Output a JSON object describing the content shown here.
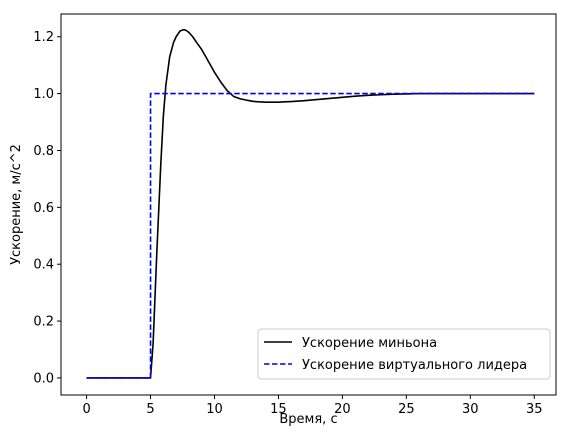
{
  "chart_data": {
    "type": "line",
    "xlabel": "Время, с",
    "ylabel": "Ускорение, м/с^2",
    "xlim": [
      -2.0,
      36.7
    ],
    "ylim": [
      -0.06,
      1.28
    ],
    "xticks": [
      0,
      5,
      10,
      15,
      20,
      25,
      30,
      35
    ],
    "xtick_labels": [
      "0",
      "5",
      "10",
      "15",
      "20",
      "25",
      "30",
      "35"
    ],
    "yticks": [
      0.0,
      0.2,
      0.4,
      0.6,
      0.8,
      1.0,
      1.2
    ],
    "ytick_labels": [
      "0.0",
      "0.2",
      "0.4",
      "0.6",
      "0.8",
      "1.0",
      "1.2"
    ],
    "grid": false,
    "legend_position": "bottom-right",
    "series": [
      {
        "name": "Ускорение миньона",
        "color": "#000000",
        "style": "solid",
        "x": [
          0,
          5.0,
          5.2,
          5.5,
          5.8,
          6.0,
          6.2,
          6.5,
          6.8,
          7.0,
          7.3,
          7.6,
          7.8,
          8.0,
          8.3,
          8.6,
          9.0,
          9.5,
          10.0,
          10.5,
          11.0,
          11.5,
          12.0,
          12.5,
          13.0,
          13.5,
          14.0,
          14.5,
          15.0,
          15.5,
          16.0,
          17.0,
          18.0,
          19.0,
          20.0,
          21.0,
          22.0,
          23.0,
          24.0,
          25.0,
          26.0,
          28.0,
          30.0,
          32.0,
          35.0
        ],
        "y": [
          0,
          0,
          0.12,
          0.45,
          0.75,
          0.92,
          1.03,
          1.13,
          1.18,
          1.2,
          1.22,
          1.225,
          1.222,
          1.215,
          1.2,
          1.18,
          1.155,
          1.115,
          1.075,
          1.04,
          1.01,
          0.99,
          0.982,
          0.977,
          0.973,
          0.971,
          0.97,
          0.97,
          0.97,
          0.971,
          0.972,
          0.975,
          0.979,
          0.983,
          0.987,
          0.991,
          0.994,
          0.996,
          0.998,
          0.999,
          1.0,
          1.0,
          1.0,
          1.0,
          1.0
        ]
      },
      {
        "name": "Ускорение виртуального лидера",
        "color": "#0000ff",
        "style": "dashed",
        "x": [
          0,
          5.0,
          5.0,
          35.0
        ],
        "y": [
          0,
          0,
          1.0,
          1.0
        ]
      }
    ]
  }
}
